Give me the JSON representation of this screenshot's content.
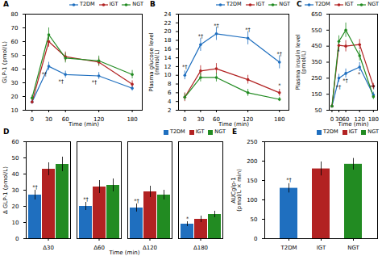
{
  "chart_data": [
    {
      "type": "line",
      "title": "A",
      "x": [
        0,
        30,
        60,
        120,
        180
      ],
      "xlim": [
        -12,
        198
      ],
      "xticks": [
        0,
        30,
        60,
        120,
        180
      ],
      "xlabel": "Time (min)",
      "ylabel": "GLP-1 (pmol/L)",
      "ylim": [
        10,
        80
      ],
      "yticks": [
        10,
        20,
        30,
        40,
        50,
        60,
        70,
        80
      ],
      "marker": "circle",
      "legend": "upper right",
      "series": [
        {
          "name": "T2DM",
          "color": "#1F6FBF",
          "values": [
            16,
            42,
            36,
            35,
            26
          ],
          "errors": [
            1.5,
            3,
            2.5,
            2.5,
            2
          ]
        },
        {
          "name": "IGT",
          "color": "#B22222",
          "values": [
            16,
            60,
            49,
            45,
            29
          ],
          "errors": [
            1.5,
            4,
            3.5,
            3,
            2.5
          ]
        },
        {
          "name": "NGT",
          "color": "#228B22",
          "values": [
            19,
            65,
            48,
            46,
            36
          ],
          "errors": [
            2,
            5,
            3.5,
            3.5,
            3
          ]
        }
      ],
      "annotations": [
        {
          "text": "*†",
          "x": 22,
          "y": 35
        },
        {
          "text": "*†",
          "x": 52,
          "y": 30
        },
        {
          "text": "*†",
          "x": 112,
          "y": 29
        }
      ]
    },
    {
      "type": "line",
      "title": "B",
      "x": [
        0,
        30,
        60,
        120,
        180
      ],
      "xlim": [
        -12,
        198
      ],
      "xticks": [
        0,
        30,
        60,
        120,
        180
      ],
      "xlabel": "Time (min)",
      "ylabel": "Plasma glucose level\n(mmol/L)",
      "ylim": [
        2,
        24
      ],
      "yticks": [
        2,
        4,
        6,
        8,
        10,
        12,
        14,
        16,
        18,
        20,
        22,
        24
      ],
      "marker": "circle",
      "legend": "upper right",
      "series": [
        {
          "name": "T2DM",
          "color": "#1F6FBF",
          "values": [
            10,
            17,
            19.5,
            18.5,
            13
          ],
          "errors": [
            1,
            1.5,
            1.5,
            1.5,
            1.5
          ]
        },
        {
          "name": "IGT",
          "color": "#B22222",
          "values": [
            5,
            11,
            11.5,
            9,
            6
          ],
          "errors": [
            1,
            1.2,
            1.2,
            1,
            0.8
          ]
        },
        {
          "name": "NGT",
          "color": "#228B22",
          "values": [
            5,
            9.5,
            9.5,
            6,
            4.5
          ],
          "errors": [
            0.8,
            1,
            1,
            0.8,
            0.5
          ]
        }
      ],
      "annotations": [
        {
          "text": "*†",
          "x": 0,
          "y": 11.5
        },
        {
          "text": "*†",
          "x": 30,
          "y": 18.5
        },
        {
          "text": "*†",
          "x": 60,
          "y": 21
        },
        {
          "text": "*†",
          "x": 120,
          "y": 20
        },
        {
          "text": "*†",
          "x": 180,
          "y": 14.5
        },
        {
          "text": "*",
          "x": 180,
          "y": 7.2
        }
      ]
    },
    {
      "type": "line",
      "title": "C",
      "x": [
        0,
        30,
        60,
        120,
        180
      ],
      "xlim": [
        -12,
        198
      ],
      "xticks": [
        0,
        30,
        60,
        120,
        180
      ],
      "xlabel": "Time (min)",
      "ylabel": "Plasma insulin level\n(pmol/L)",
      "ylim": [
        50,
        650
      ],
      "yticks": [
        50,
        150,
        250,
        350,
        450,
        550,
        650
      ],
      "marker": "circle",
      "legend": "upper right",
      "series": [
        {
          "name": "T2DM",
          "color": "#1F6FBF",
          "values": [
            75,
            250,
            280,
            320,
            145
          ],
          "errors": [
            10,
            25,
            28,
            28,
            18
          ]
        },
        {
          "name": "IGT",
          "color": "#B22222",
          "values": [
            75,
            455,
            450,
            460,
            200
          ],
          "errors": [
            10,
            30,
            35,
            32,
            18
          ]
        },
        {
          "name": "NGT",
          "color": "#228B22",
          "values": [
            75,
            480,
            550,
            390,
            135
          ],
          "errors": [
            10,
            35,
            45,
            32,
            18
          ]
        }
      ],
      "annotations": [
        {
          "text": "*†",
          "x": 28,
          "y": 185
        },
        {
          "text": "*†",
          "x": 58,
          "y": 225
        },
        {
          "text": "*",
          "x": 118,
          "y": 265
        },
        {
          "text": "*†",
          "x": 175,
          "y": 185
        },
        {
          "text": "*",
          "x": 28,
          "y": 405
        }
      ]
    },
    {
      "type": "bar",
      "title": "D",
      "categories": [
        "Δ30",
        "Δ60",
        "Δ120",
        "Δ180"
      ],
      "xlabel": "Time (min)",
      "ylabel": "Δ GLP-1 (pmol/L)",
      "ylim": [
        0,
        60
      ],
      "yticks": [
        0,
        10,
        20,
        30,
        40,
        50,
        60
      ],
      "legend": "upper right",
      "series": [
        {
          "name": "T2DM",
          "color": "#1F6FBF",
          "values": [
            27,
            20,
            19,
            9
          ],
          "errors": [
            3,
            2.5,
            2.5,
            1.5
          ]
        },
        {
          "name": "IGT",
          "color": "#B22222",
          "values": [
            43,
            32,
            29,
            12
          ],
          "errors": [
            4,
            4,
            3.5,
            2
          ]
        },
        {
          "name": "NGT",
          "color": "#228B22",
          "values": [
            46,
            33,
            27,
            15
          ],
          "errors": [
            4.5,
            4,
            3,
            2
          ]
        }
      ],
      "annotations": [
        {
          "text": "*†",
          "x": "Δ30",
          "series": "T2DM",
          "y": 31
        },
        {
          "text": "*†",
          "x": "Δ60",
          "series": "T2DM",
          "y": 23.5
        },
        {
          "text": "*†",
          "x": "Δ120",
          "series": "T2DM",
          "y": 22.5
        },
        {
          "text": "*",
          "x": "Δ180",
          "series": "T2DM",
          "y": 11.5
        }
      ]
    },
    {
      "type": "bar",
      "title": "E",
      "categories": [
        "T2DM",
        "IGT",
        "NGT"
      ],
      "values": [
        130,
        180,
        192
      ],
      "errors": [
        12,
        18,
        15
      ],
      "colors": [
        "#1F6FBF",
        "#B22222",
        "#228B22"
      ],
      "ylabel": "AUCglp-1\n(pmol/L × min)",
      "ylim": [
        0,
        250
      ],
      "yticks": [
        0,
        50,
        100,
        150,
        200,
        250
      ],
      "legend": "upper right",
      "annotations": [
        {
          "text": "*†",
          "x": "T2DM",
          "y": 147
        }
      ]
    }
  ]
}
